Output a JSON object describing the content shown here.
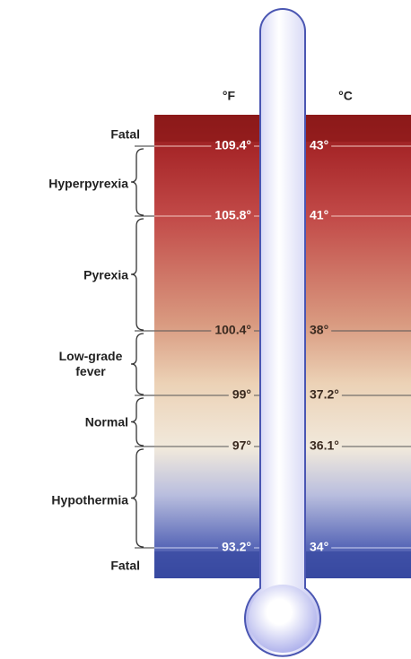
{
  "headers": {
    "fahrenheit": "°F",
    "celsius": "°C"
  },
  "zones": [
    {
      "label": "Fatal"
    },
    {
      "label": "Hyperpyrexia"
    },
    {
      "label": "Pyrexia"
    },
    {
      "label": "Low-grade fever"
    },
    {
      "label": "Normal"
    },
    {
      "label": "Hypothermia"
    },
    {
      "label": "Fatal"
    }
  ],
  "marks": [
    {
      "fahrenheit": "109.4°",
      "celsius": "43°"
    },
    {
      "fahrenheit": "105.8°",
      "celsius": "41°"
    },
    {
      "fahrenheit": "100.4°",
      "celsius": "38°"
    },
    {
      "fahrenheit": "99°",
      "celsius": "37.2°"
    },
    {
      "fahrenheit": "97°",
      "celsius": "36.1°"
    },
    {
      "fahrenheit": "93.2°",
      "celsius": "34°"
    }
  ]
}
